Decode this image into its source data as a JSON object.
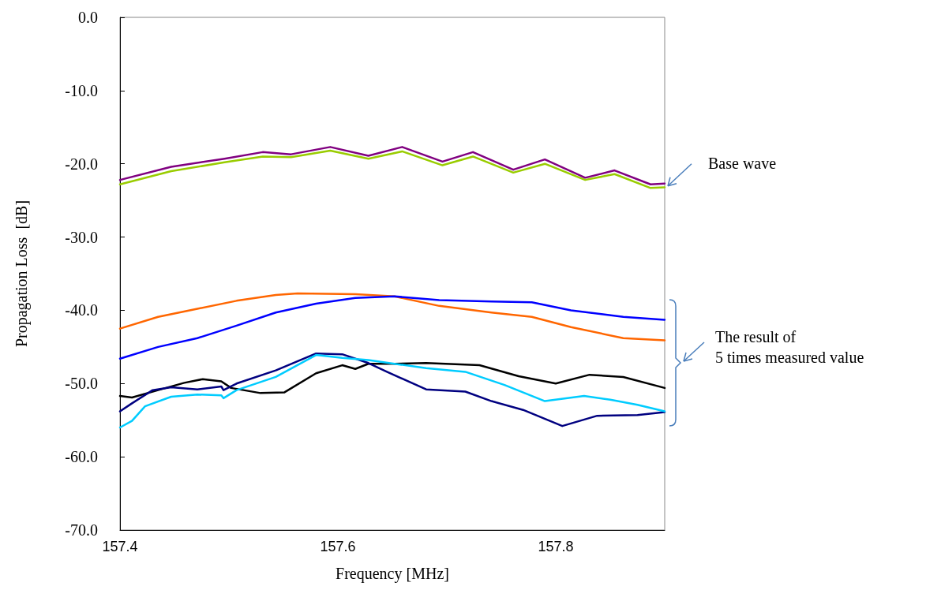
{
  "chart_data": {
    "type": "line",
    "xlabel": "Frequency [MHz]",
    "ylabel": "Propagation Loss  [dB]",
    "xlim": [
      157.4,
      157.9
    ],
    "ylim": [
      -70,
      0
    ],
    "xticks": [
      157.4,
      157.6,
      157.8
    ],
    "yticks": [
      {
        "value": -70,
        "label": "-70.0"
      },
      {
        "value": -60,
        "label": "-60.0"
      },
      {
        "value": -50,
        "label": "-50.0"
      },
      {
        "value": -40,
        "label": "-40.0"
      },
      {
        "value": -30,
        "label": "-30.0"
      },
      {
        "value": -20,
        "label": "-20.0"
      },
      {
        "value": -10,
        "label": "-10.0"
      },
      {
        "value": 0,
        "label": "0.0"
      }
    ],
    "grid": false,
    "marker": "none",
    "line_style": "solid",
    "annotations": [
      {
        "text": "Base wave",
        "x": 157.9,
        "y": -22.8
      },
      "The result of\n5 times measured value"
    ],
    "series": [
      {
        "color": "#99cc00",
        "x": [
          157.4,
          157.447,
          157.496,
          157.531,
          157.557,
          157.593,
          157.628,
          157.659,
          157.696,
          157.724,
          157.761,
          157.79,
          157.827,
          157.854,
          157.887,
          157.9
        ],
        "values": [
          -22.8,
          -21.0,
          -19.8,
          -19.0,
          -19.1,
          -18.2,
          -19.3,
          -18.3,
          -20.2,
          -19.0,
          -21.2,
          -20.0,
          -22.2,
          -21.4,
          -23.3,
          -23.2
        ]
      },
      {
        "color": "#800080",
        "x": [
          157.4,
          157.447,
          157.496,
          157.531,
          157.557,
          157.593,
          157.628,
          157.659,
          157.696,
          157.724,
          157.761,
          157.79,
          157.827,
          157.854,
          157.887,
          157.9
        ],
        "values": [
          -22.2,
          -20.4,
          -19.3,
          -18.4,
          -18.7,
          -17.7,
          -18.9,
          -17.7,
          -19.7,
          -18.4,
          -20.8,
          -19.4,
          -21.9,
          -20.9,
          -22.8,
          -22.7
        ]
      },
      {
        "color": "#ff6600",
        "x": [
          157.4,
          157.435,
          157.471,
          157.507,
          157.543,
          157.563,
          157.616,
          157.652,
          157.693,
          157.741,
          157.778,
          157.814,
          157.862,
          157.9
        ],
        "values": [
          -42.5,
          -40.9,
          -39.8,
          -38.7,
          -37.9,
          -37.7,
          -37.8,
          -38.1,
          -39.4,
          -40.3,
          -40.9,
          -42.3,
          -43.8,
          -44.1
        ]
      },
      {
        "color": "#0000ff",
        "x": [
          157.4,
          157.435,
          157.471,
          157.507,
          157.543,
          157.58,
          157.616,
          157.652,
          157.693,
          157.741,
          157.778,
          157.814,
          157.862,
          157.9
        ],
        "values": [
          -46.6,
          -45.0,
          -43.8,
          -42.1,
          -40.3,
          -39.1,
          -38.3,
          -38.1,
          -38.6,
          -38.8,
          -38.9,
          -40.0,
          -40.9,
          -41.3
        ]
      },
      {
        "color": "#000000",
        "x": [
          157.4,
          157.411,
          157.435,
          157.459,
          157.476,
          157.493,
          157.502,
          157.529,
          157.551,
          157.58,
          157.604,
          157.616,
          157.628,
          157.652,
          157.681,
          157.73,
          157.766,
          157.8,
          157.831,
          157.862,
          157.9
        ],
        "values": [
          -51.7,
          -51.9,
          -50.9,
          -49.9,
          -49.4,
          -49.7,
          -50.6,
          -51.3,
          -51.2,
          -48.6,
          -47.5,
          -48.0,
          -47.3,
          -47.3,
          -47.2,
          -47.5,
          -49.0,
          -50.0,
          -48.8,
          -49.1,
          -50.6
        ]
      },
      {
        "color": "#000080",
        "x": [
          157.4,
          157.411,
          157.43,
          157.447,
          157.471,
          157.493,
          157.495,
          157.507,
          157.543,
          157.58,
          157.604,
          157.628,
          157.645,
          157.681,
          157.717,
          157.741,
          157.77,
          157.806,
          157.838,
          157.875,
          157.9
        ],
        "values": [
          -53.8,
          -52.7,
          -50.9,
          -50.5,
          -50.8,
          -50.4,
          -50.9,
          -50.0,
          -48.2,
          -45.9,
          -46.0,
          -47.2,
          -48.4,
          -50.8,
          -51.1,
          -52.4,
          -53.6,
          -55.8,
          -54.4,
          -54.3,
          -53.9
        ]
      },
      {
        "color": "#00ccff",
        "x": [
          157.4,
          157.411,
          157.423,
          157.447,
          157.471,
          157.493,
          157.495,
          157.507,
          157.543,
          157.58,
          157.604,
          157.628,
          157.652,
          157.681,
          157.717,
          157.753,
          157.79,
          157.826,
          157.85,
          157.875,
          157.9
        ],
        "values": [
          -56.0,
          -55.1,
          -53.1,
          -51.8,
          -51.5,
          -51.6,
          -52.0,
          -50.9,
          -49.1,
          -46.1,
          -46.5,
          -46.8,
          -47.3,
          -47.9,
          -48.4,
          -50.2,
          -52.4,
          -51.7,
          -52.2,
          -52.9,
          -53.8
        ]
      }
    ]
  }
}
